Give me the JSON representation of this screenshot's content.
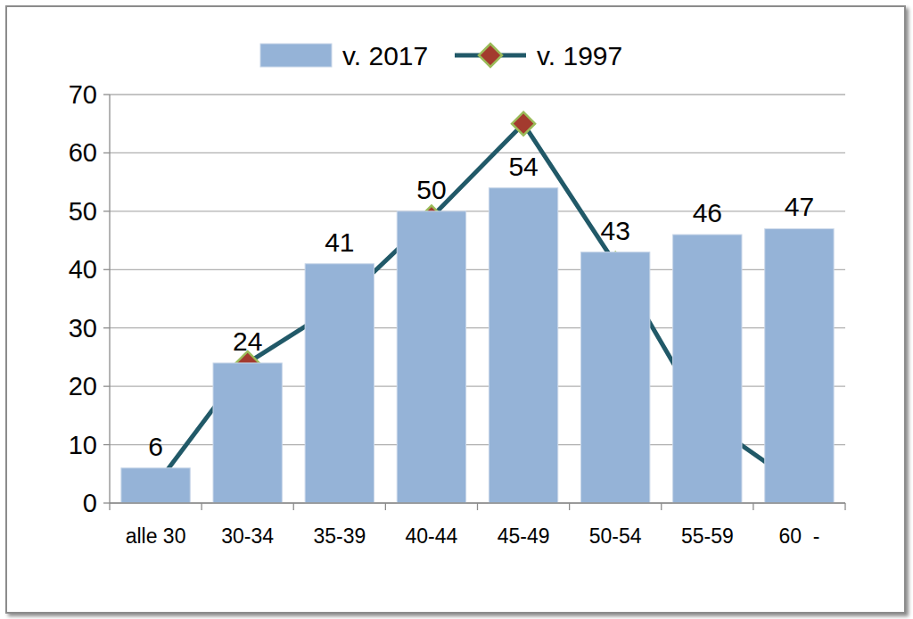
{
  "chart_data": {
    "type": "bar",
    "categories": [
      "alle 30",
      "30-34",
      "35-39",
      "40-44",
      "45-49",
      "50-54",
      "55-59",
      "60  -"
    ],
    "series": [
      {
        "name": "v. 2017",
        "type": "bar",
        "color": "#95b3d7",
        "data_labels": true,
        "values": [
          6,
          24,
          41,
          50,
          54,
          43,
          46,
          47
        ]
      },
      {
        "name": "v. 1997",
        "type": "line",
        "color": "#215968",
        "marker": "diamond",
        "values": [
          3,
          24,
          34,
          49,
          65,
          41,
          14,
          3
        ]
      }
    ],
    "ylim": [
      0,
      70
    ],
    "yticks": [
      0,
      10,
      20,
      30,
      40,
      50,
      60,
      70
    ],
    "grid": true,
    "legend": "top"
  }
}
